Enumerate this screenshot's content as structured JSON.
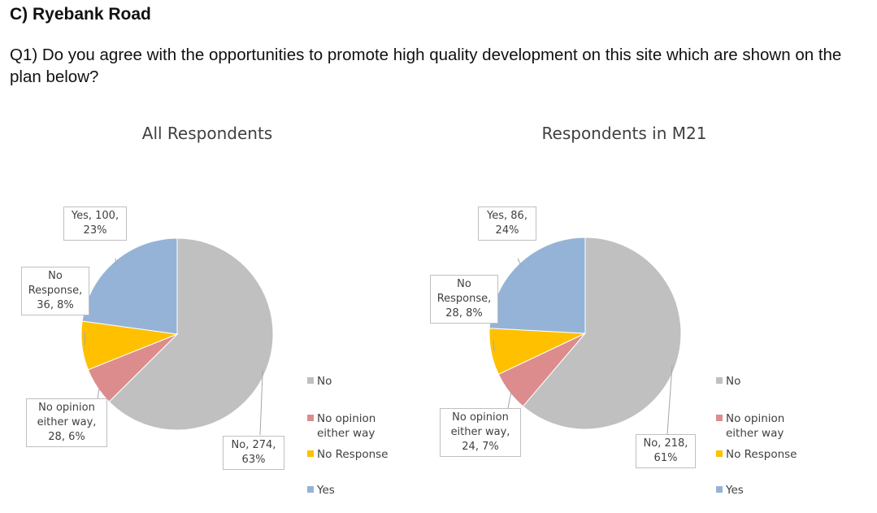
{
  "section_title": "C) Ryebank Road",
  "question": "Q1) Do you agree with the opportunities to promote high quality development on this site which are shown on the plan below?",
  "colors": {
    "No": "#c0c0c0",
    "No opinion either way": "#dc8c8c",
    "No Response": "#ffc000",
    "Yes": "#95b3d7"
  },
  "chart_data": [
    {
      "type": "pie",
      "title": "All Respondents",
      "slices": [
        {
          "category": "No",
          "value": 274,
          "percent": 63,
          "label": "No, 274,\n63%"
        },
        {
          "category": "No opinion either way",
          "value": 28,
          "percent": 6,
          "label": "No opinion\neither way,\n28, 6%"
        },
        {
          "category": "No Response",
          "value": 36,
          "percent": 8,
          "label": "No\nResponse,\n36, 8%"
        },
        {
          "category": "Yes",
          "value": 100,
          "percent": 23,
          "label": "Yes, 100,\n23%"
        }
      ],
      "legend": [
        "No",
        "No opinion either way",
        "No Response",
        "Yes"
      ],
      "legend_position": "right"
    },
    {
      "type": "pie",
      "title": "Respondents in M21",
      "slices": [
        {
          "category": "No",
          "value": 218,
          "percent": 61,
          "label": "No, 218,\n61%"
        },
        {
          "category": "No opinion either way",
          "value": 24,
          "percent": 7,
          "label": "No opinion\neither way,\n24, 7%"
        },
        {
          "category": "No Response",
          "value": 28,
          "percent": 8,
          "label": "No\nResponse,\n28, 8%"
        },
        {
          "category": "Yes",
          "value": 86,
          "percent": 24,
          "label": "Yes, 86,\n24%"
        }
      ],
      "legend": [
        "No",
        "No opinion either way",
        "No Response",
        "Yes"
      ],
      "legend_position": "right"
    }
  ]
}
